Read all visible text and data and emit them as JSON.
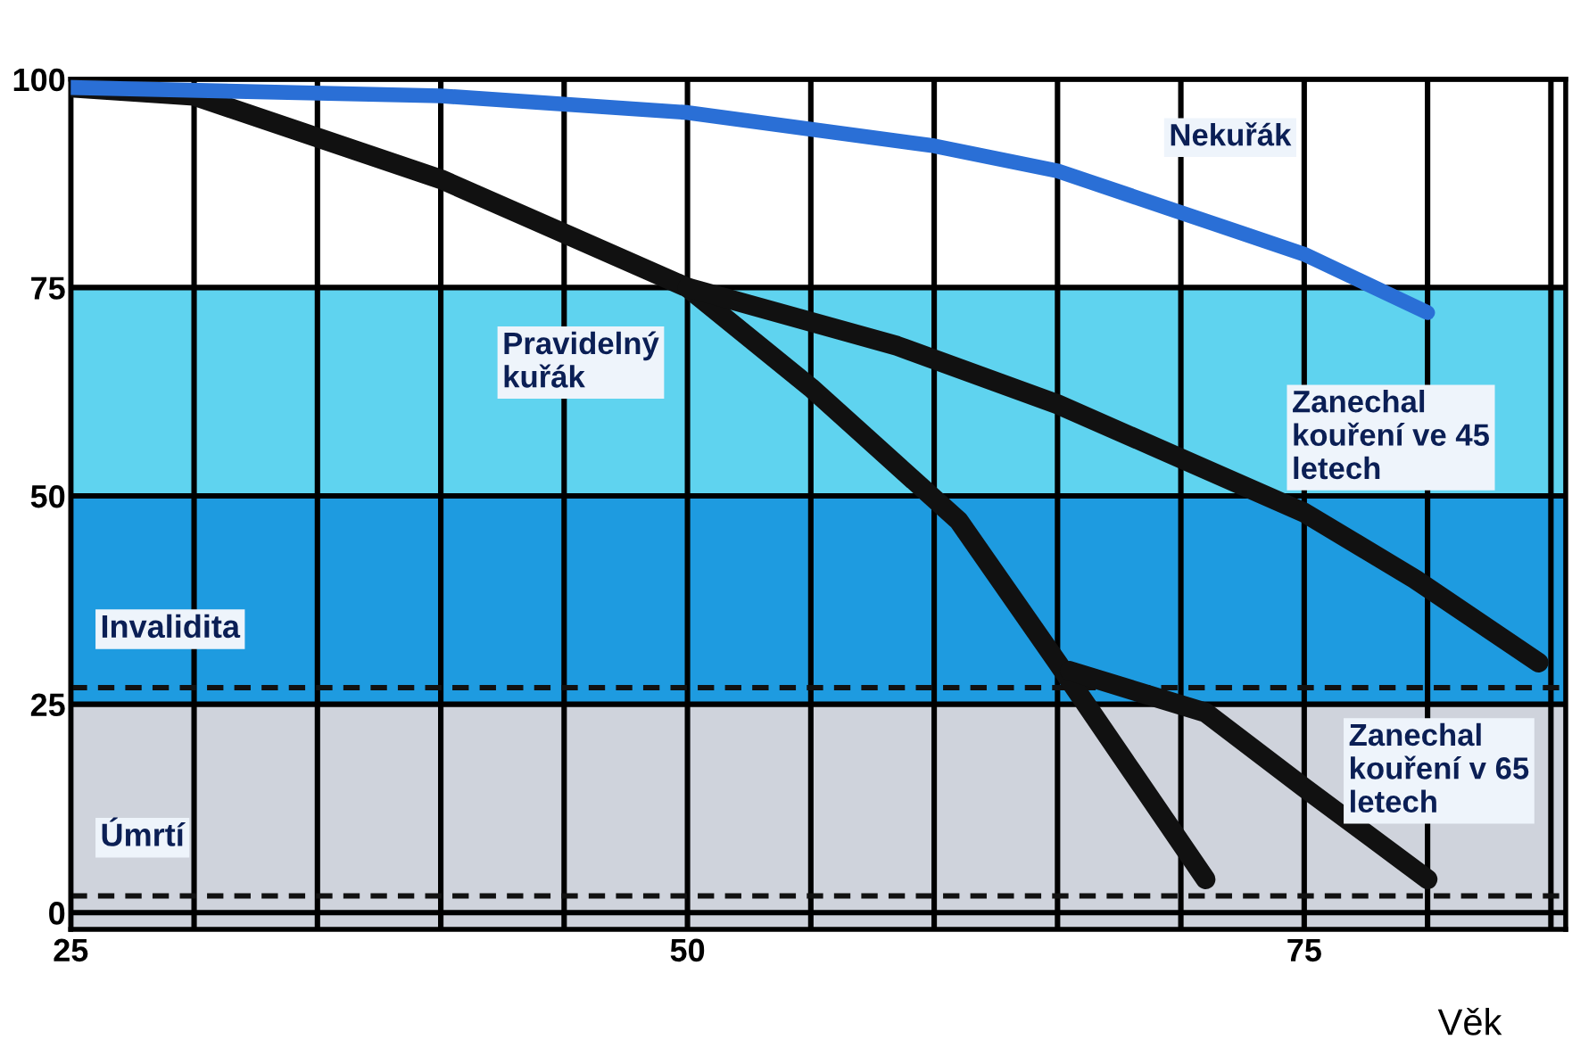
{
  "chart_data": {
    "type": "line",
    "xlabel": "Věk",
    "xlim": [
      25,
      85.6
    ],
    "ylim": [
      -2,
      100
    ],
    "xticks": [
      25,
      {
        "value": 30,
        "label": null
      },
      {
        "value": 35,
        "label": null
      },
      {
        "value": 40,
        "label": null
      },
      {
        "value": 45,
        "label": null
      },
      50,
      {
        "value": 55,
        "label": null
      },
      {
        "value": 60,
        "label": null
      },
      {
        "value": 65,
        "label": null
      },
      {
        "value": 70,
        "label": null
      },
      75,
      {
        "value": 80,
        "label": null
      },
      {
        "value": 85,
        "label": null
      }
    ],
    "yticks": [
      0,
      25,
      50,
      75,
      100
    ],
    "grid": true,
    "line_style": "solid",
    "marker": "none",
    "series": [
      {
        "name": "Nekuřák",
        "color": "#2a6fd6",
        "x": [
          25,
          40,
          50,
          60,
          65,
          70,
          75,
          80
        ],
        "values": [
          99,
          98,
          96,
          92,
          89,
          84,
          79,
          72
        ]
      },
      {
        "name": "Pravidelný kuřák",
        "color": "#111111",
        "x": [
          25,
          30,
          40,
          50,
          55,
          61,
          65,
          68,
          71
        ],
        "values": [
          99,
          98,
          88,
          75,
          63,
          47,
          30,
          17,
          4
        ]
      },
      {
        "name": "Zanechal kouření ve 45 letech",
        "color": "#111111",
        "x": [
          50,
          58.5,
          65,
          75,
          79.5,
          84.5
        ],
        "values": [
          75,
          68,
          61,
          48,
          40,
          30
        ]
      },
      {
        "name": "Zanechal kouření v 65 letech",
        "color": "#111111",
        "x": [
          65.5,
          71,
          75,
          80
        ],
        "values": [
          29,
          24,
          15,
          4
        ]
      }
    ],
    "bands": [
      {
        "axis": "y",
        "from": 50,
        "to": 75,
        "color": "#5fd3ef"
      },
      {
        "axis": "y",
        "from": 25,
        "to": 50,
        "color": "#1e9be0"
      },
      {
        "axis": "y",
        "from": -2,
        "to": 25,
        "color": "#cfd3dc"
      }
    ],
    "ref_lines": [
      {
        "axis": "y",
        "value": 27,
        "label": "Invalidita",
        "line_style": "dashed",
        "color": "#111111"
      },
      {
        "axis": "y",
        "value": 2,
        "label": "Úmrtí",
        "line_style": "dashed",
        "color": "#111111"
      }
    ]
  }
}
